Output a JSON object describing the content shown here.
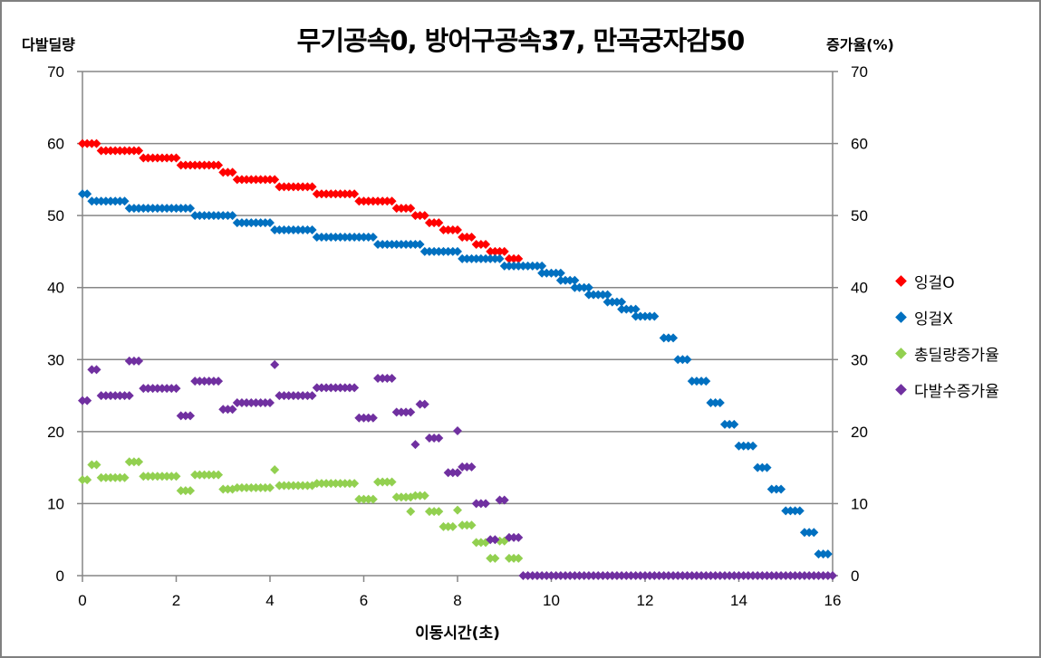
{
  "chart_data": {
    "type": "scatter",
    "title": "무기공속0, 방어구공속37, 만곡궁자감50",
    "xlabel": "이동시간(초)",
    "ylabel": "다발딜량",
    "ylabel_right": "증가율(%)",
    "xlim": [
      0,
      16
    ],
    "ylim": [
      0,
      70
    ],
    "ylim_right": [
      0,
      70
    ],
    "x_ticks": [
      0,
      2,
      4,
      6,
      8,
      10,
      12,
      14,
      16
    ],
    "y_ticks": [
      0,
      10,
      20,
      30,
      40,
      50,
      60,
      70
    ],
    "y_ticks_right": [
      0,
      10,
      20,
      30,
      40,
      50,
      60,
      70
    ],
    "grid": "horizontal",
    "legend_position": "right",
    "series": [
      {
        "name": "잉걸O",
        "color": "#ff0000",
        "steps": [
          {
            "x0": 0.0,
            "x1": 0.3,
            "y": 60
          },
          {
            "x0": 0.4,
            "x1": 1.2,
            "y": 59
          },
          {
            "x0": 1.3,
            "x1": 2.0,
            "y": 58
          },
          {
            "x0": 2.1,
            "x1": 2.9,
            "y": 57
          },
          {
            "x0": 3.0,
            "x1": 3.2,
            "y": 56
          },
          {
            "x0": 3.3,
            "x1": 4.1,
            "y": 55
          },
          {
            "x0": 4.2,
            "x1": 4.9,
            "y": 54
          },
          {
            "x0": 5.0,
            "x1": 5.8,
            "y": 53
          },
          {
            "x0": 5.9,
            "x1": 6.6,
            "y": 52
          },
          {
            "x0": 6.7,
            "x1": 7.0,
            "y": 51
          },
          {
            "x0": 7.1,
            "x1": 7.3,
            "y": 50
          },
          {
            "x0": 7.4,
            "x1": 7.6,
            "y": 49
          },
          {
            "x0": 7.7,
            "x1": 8.0,
            "y": 48
          },
          {
            "x0": 8.1,
            "x1": 8.3,
            "y": 47
          },
          {
            "x0": 8.4,
            "x1": 8.6,
            "y": 46
          },
          {
            "x0": 8.7,
            "x1": 9.0,
            "y": 45
          },
          {
            "x0": 9.1,
            "x1": 9.3,
            "y": 44
          }
        ]
      },
      {
        "name": "잉걸X",
        "color": "#0070c0",
        "steps": [
          {
            "x0": 0.0,
            "x1": 0.1,
            "y": 53
          },
          {
            "x0": 0.2,
            "x1": 0.9,
            "y": 52
          },
          {
            "x0": 1.0,
            "x1": 2.3,
            "y": 51
          },
          {
            "x0": 2.4,
            "x1": 3.2,
            "y": 50
          },
          {
            "x0": 3.3,
            "x1": 4.0,
            "y": 49
          },
          {
            "x0": 4.1,
            "x1": 4.9,
            "y": 48
          },
          {
            "x0": 5.0,
            "x1": 6.2,
            "y": 47
          },
          {
            "x0": 6.3,
            "x1": 7.2,
            "y": 46
          },
          {
            "x0": 7.3,
            "x1": 8.0,
            "y": 45
          },
          {
            "x0": 8.1,
            "x1": 8.9,
            "y": 44
          },
          {
            "x0": 9.0,
            "x1": 9.8,
            "y": 43
          },
          {
            "x0": 9.8,
            "x1": 10.2,
            "y": 42
          },
          {
            "x0": 10.2,
            "x1": 10.5,
            "y": 41
          },
          {
            "x0": 10.5,
            "x1": 10.8,
            "y": 40
          },
          {
            "x0": 10.8,
            "x1": 11.2,
            "y": 39
          },
          {
            "x0": 11.2,
            "x1": 11.5,
            "y": 38
          },
          {
            "x0": 11.5,
            "x1": 11.8,
            "y": 37
          },
          {
            "x0": 11.8,
            "x1": 12.2,
            "y": 36
          },
          {
            "x0": 12.4,
            "x1": 12.6,
            "y": 33
          },
          {
            "x0": 12.7,
            "x1": 12.9,
            "y": 30
          },
          {
            "x0": 13.0,
            "x1": 13.3,
            "y": 27
          },
          {
            "x0": 13.4,
            "x1": 13.6,
            "y": 24
          },
          {
            "x0": 13.7,
            "x1": 13.9,
            "y": 21
          },
          {
            "x0": 14.0,
            "x1": 14.3,
            "y": 18
          },
          {
            "x0": 14.4,
            "x1": 14.6,
            "y": 15
          },
          {
            "x0": 14.7,
            "x1": 14.9,
            "y": 12
          },
          {
            "x0": 15.0,
            "x1": 15.3,
            "y": 9
          },
          {
            "x0": 15.4,
            "x1": 15.6,
            "y": 6
          },
          {
            "x0": 15.7,
            "x1": 15.9,
            "y": 3
          }
        ]
      },
      {
        "name": "총딜량증가율",
        "color": "#92d050",
        "steps": [
          {
            "x0": 0.0,
            "x1": 0.1,
            "y": 13.3
          },
          {
            "x0": 0.2,
            "x1": 0.3,
            "y": 15.4
          },
          {
            "x0": 0.4,
            "x1": 0.9,
            "y": 13.6
          },
          {
            "x0": 1.0,
            "x1": 1.2,
            "y": 15.8
          },
          {
            "x0": 1.3,
            "x1": 2.0,
            "y": 13.8
          },
          {
            "x0": 2.1,
            "x1": 2.3,
            "y": 11.8
          },
          {
            "x0": 2.4,
            "x1": 2.9,
            "y": 14.0
          },
          {
            "x0": 3.0,
            "x1": 3.2,
            "y": 12.0
          },
          {
            "x0": 3.3,
            "x1": 4.0,
            "y": 12.2
          },
          {
            "x0": 4.1,
            "x1": 4.1,
            "y": 14.7
          },
          {
            "x0": 4.2,
            "x1": 4.9,
            "y": 12.5
          },
          {
            "x0": 5.0,
            "x1": 5.8,
            "y": 12.8
          },
          {
            "x0": 5.9,
            "x1": 6.2,
            "y": 10.6
          },
          {
            "x0": 6.3,
            "x1": 6.6,
            "y": 13.0
          },
          {
            "x0": 6.7,
            "x1": 7.0,
            "y": 10.9
          },
          {
            "x0": 7.0,
            "x1": 7.0,
            "y": 8.9
          },
          {
            "x0": 7.1,
            "x1": 7.3,
            "y": 11.1
          },
          {
            "x0": 7.4,
            "x1": 7.6,
            "y": 8.9
          },
          {
            "x0": 7.7,
            "x1": 7.9,
            "y": 6.8
          },
          {
            "x0": 8.0,
            "x1": 8.0,
            "y": 9.1
          },
          {
            "x0": 8.1,
            "x1": 8.3,
            "y": 7.0
          },
          {
            "x0": 8.4,
            "x1": 8.6,
            "y": 4.6
          },
          {
            "x0": 8.7,
            "x1": 8.8,
            "y": 2.4
          },
          {
            "x0": 8.9,
            "x1": 9.0,
            "y": 4.8
          },
          {
            "x0": 9.1,
            "x1": 9.3,
            "y": 2.4
          }
        ]
      },
      {
        "name": "다발수증가율",
        "color": "#7030a0",
        "steps": [
          {
            "x0": 0.0,
            "x1": 0.1,
            "y": 24.3
          },
          {
            "x0": 0.2,
            "x1": 0.3,
            "y": 28.6
          },
          {
            "x0": 0.4,
            "x1": 1.0,
            "y": 25.0
          },
          {
            "x0": 1.0,
            "x1": 1.2,
            "y": 29.8
          },
          {
            "x0": 1.3,
            "x1": 2.0,
            "y": 26.0
          },
          {
            "x0": 2.1,
            "x1": 2.3,
            "y": 22.2
          },
          {
            "x0": 2.4,
            "x1": 2.9,
            "y": 27.0
          },
          {
            "x0": 3.0,
            "x1": 3.2,
            "y": 23.1
          },
          {
            "x0": 3.3,
            "x1": 4.0,
            "y": 24.0
          },
          {
            "x0": 4.1,
            "x1": 4.1,
            "y": 29.3
          },
          {
            "x0": 4.2,
            "x1": 4.9,
            "y": 25.0
          },
          {
            "x0": 5.0,
            "x1": 5.8,
            "y": 26.1
          },
          {
            "x0": 5.9,
            "x1": 6.2,
            "y": 21.9
          },
          {
            "x0": 6.3,
            "x1": 6.6,
            "y": 27.4
          },
          {
            "x0": 6.7,
            "x1": 7.0,
            "y": 22.7
          },
          {
            "x0": 7.1,
            "x1": 7.1,
            "y": 18.2
          },
          {
            "x0": 7.2,
            "x1": 7.3,
            "y": 23.8
          },
          {
            "x0": 7.4,
            "x1": 7.6,
            "y": 19.1
          },
          {
            "x0": 7.8,
            "x1": 8.0,
            "y": 14.3
          },
          {
            "x0": 8.0,
            "x1": 8.0,
            "y": 20.1
          },
          {
            "x0": 8.1,
            "x1": 8.3,
            "y": 15.1
          },
          {
            "x0": 8.4,
            "x1": 8.6,
            "y": 10.0
          },
          {
            "x0": 8.7,
            "x1": 8.8,
            "y": 5.0
          },
          {
            "x0": 8.9,
            "x1": 9.0,
            "y": 10.5
          },
          {
            "x0": 9.1,
            "x1": 9.3,
            "y": 5.3
          },
          {
            "x0": 9.4,
            "x1": 16.0,
            "y": 0
          }
        ]
      }
    ]
  }
}
